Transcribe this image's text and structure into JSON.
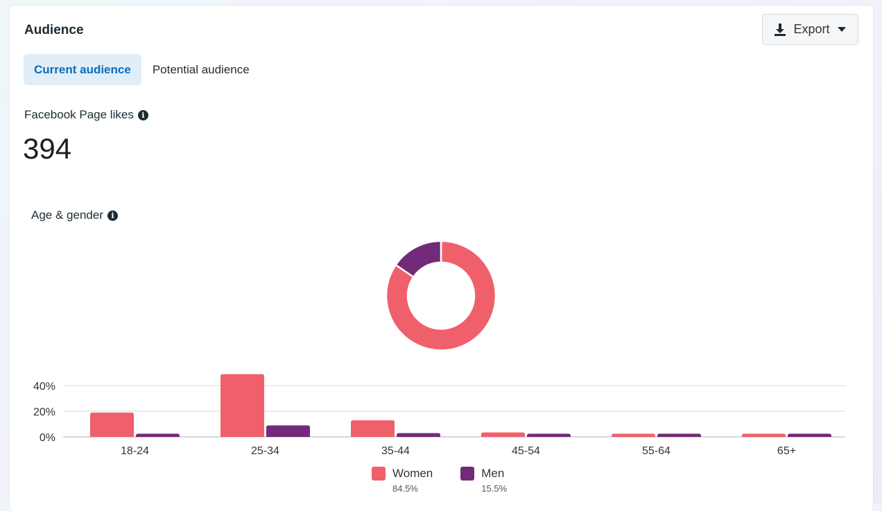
{
  "header": {
    "title": "Audience",
    "export_label": "Export"
  },
  "tabs": [
    {
      "label": "Current audience",
      "active": true
    },
    {
      "label": "Potential audience",
      "active": false
    }
  ],
  "metric": {
    "label": "Facebook Page likes",
    "value": "394"
  },
  "age_gender": {
    "label": "Age & gender"
  },
  "colors": {
    "women": "#f0606a",
    "men": "#722b78",
    "accent": "#0a6cbf"
  },
  "legend": [
    {
      "name": "Women",
      "pct": "84.5%"
    },
    {
      "name": "Men",
      "pct": "15.5%"
    }
  ],
  "chart_data": [
    {
      "type": "pie",
      "donut": true,
      "categories": [
        "Women",
        "Men"
      ],
      "values": [
        84.5,
        15.5
      ]
    },
    {
      "type": "bar",
      "categories": [
        "18-24",
        "25-34",
        "35-44",
        "45-54",
        "55-64",
        "65+"
      ],
      "series": [
        {
          "name": "Women",
          "values": [
            19,
            49,
            13,
            3.5,
            2.5,
            2.5
          ]
        },
        {
          "name": "Men",
          "values": [
            2.5,
            9,
            3,
            2.5,
            2.5,
            2.5
          ]
        }
      ],
      "yticks": [
        "0%",
        "20%",
        "40%"
      ],
      "ylim": [
        0,
        40
      ],
      "grid": true
    }
  ]
}
